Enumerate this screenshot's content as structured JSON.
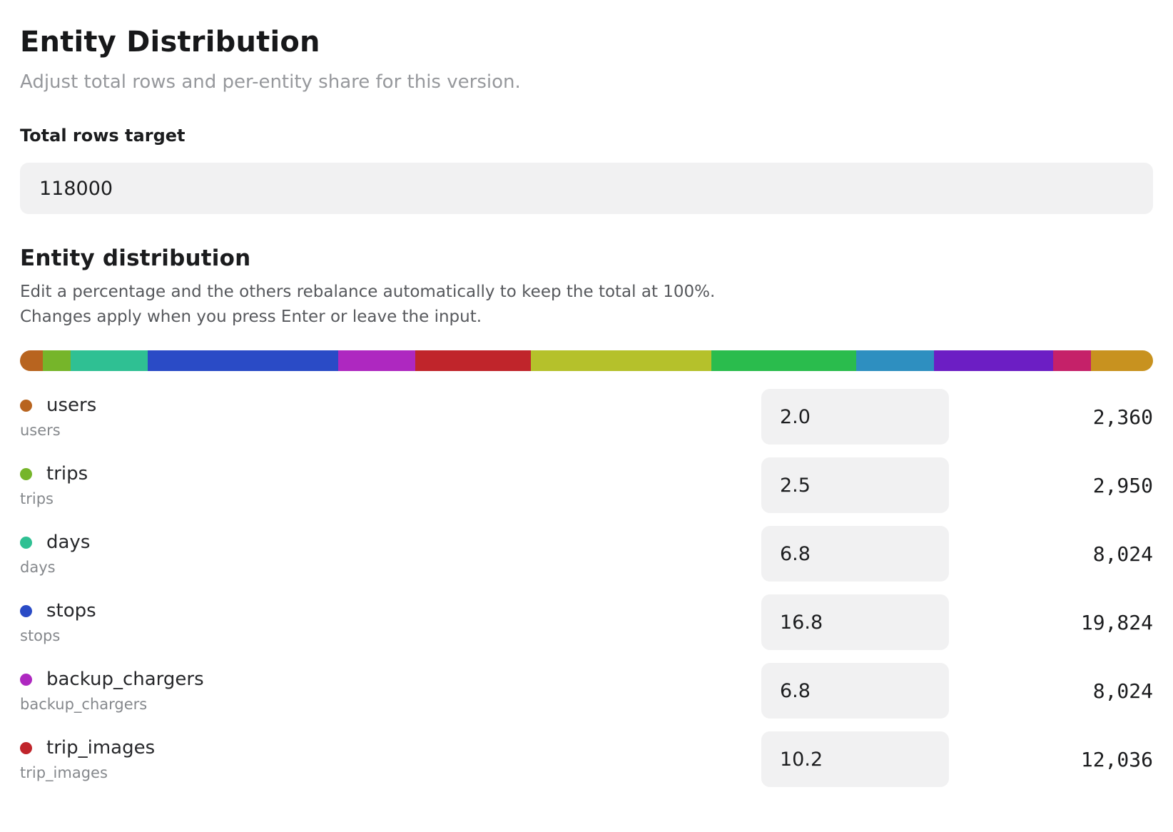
{
  "page": {
    "title": "Entity Distribution",
    "subtitle": "Adjust total rows and per-entity share for this version."
  },
  "total_rows": {
    "label": "Total rows target",
    "value": "118000"
  },
  "distribution": {
    "heading": "Entity distribution",
    "helper_line1": "Edit a percentage and the others rebalance automatically to keep the total at 100%.",
    "helper_line2": "Changes apply when you press Enter or leave the input.",
    "bar_segments": [
      {
        "entity": "users",
        "color": "#b8641f",
        "width_pct": 2.0
      },
      {
        "entity": "trips",
        "color": "#76b52a",
        "width_pct": 2.5
      },
      {
        "entity": "days",
        "color": "#2fc093",
        "width_pct": 6.8
      },
      {
        "entity": "stops",
        "color": "#2a4bc6",
        "width_pct": 16.8
      },
      {
        "entity": "backup_chargers",
        "color": "#ae28c0",
        "width_pct": 6.8
      },
      {
        "entity": "trip_images",
        "color": "#c0252b",
        "width_pct": 10.2
      },
      {
        "entity": "segment-7",
        "color": "#b5c12b",
        "width_pct": 15.9
      },
      {
        "entity": "segment-8",
        "color": "#2abc4d",
        "width_pct": 12.8
      },
      {
        "entity": "segment-9",
        "color": "#2e8fc0",
        "width_pct": 6.9
      },
      {
        "entity": "segment-10",
        "color": "#6c1ec4",
        "width_pct": 10.5
      },
      {
        "entity": "segment-11",
        "color": "#c52169",
        "width_pct": 3.3
      },
      {
        "entity": "segment-12",
        "color": "#c8921f",
        "width_pct": 5.5
      }
    ],
    "rows": [
      {
        "name": "users",
        "sublabel": "users",
        "color": "#b8641f",
        "percent": "2.0",
        "count": "2,360"
      },
      {
        "name": "trips",
        "sublabel": "trips",
        "color": "#76b52a",
        "percent": "2.5",
        "count": "2,950"
      },
      {
        "name": "days",
        "sublabel": "days",
        "color": "#2fc093",
        "percent": "6.8",
        "count": "8,024"
      },
      {
        "name": "stops",
        "sublabel": "stops",
        "color": "#2a4bc6",
        "percent": "16.8",
        "count": "19,824"
      },
      {
        "name": "backup_chargers",
        "sublabel": "backup_chargers",
        "color": "#ae28c0",
        "percent": "6.8",
        "count": "8,024"
      },
      {
        "name": "trip_images",
        "sublabel": "trip_images",
        "color": "#c0252b",
        "percent": "10.2",
        "count": "12,036"
      }
    ]
  }
}
